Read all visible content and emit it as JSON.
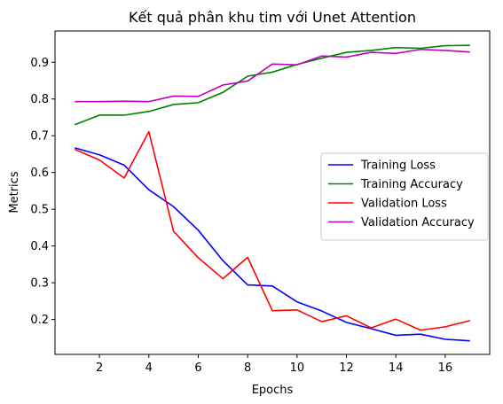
{
  "chart_data": {
    "type": "line",
    "title": "Kết quả phân khu tim với Unet Attention",
    "xlabel": "Epochs",
    "ylabel": "Metrics",
    "xlim": [
      0.2,
      17.8
    ],
    "ylim": [
      0.105,
      0.985
    ],
    "xticks": [
      2,
      4,
      6,
      8,
      10,
      12,
      14,
      16
    ],
    "yticks": [
      0.2,
      0.3,
      0.4,
      0.5,
      0.6,
      0.7,
      0.8,
      0.9
    ],
    "ytick_labels": [
      "0.2",
      "0.3",
      "0.4",
      "0.5",
      "0.6",
      "0.7",
      "0.8",
      "0.9"
    ],
    "grid": false,
    "legend_position": "center-right",
    "x": [
      1,
      2,
      3,
      4,
      5,
      6,
      7,
      8,
      9,
      10,
      11,
      12,
      13,
      14,
      15,
      16,
      17
    ],
    "series": [
      {
        "name": "Training Loss",
        "color": "#0000ff",
        "values": [
          0.667,
          0.648,
          0.62,
          0.553,
          0.507,
          0.443,
          0.36,
          0.294,
          0.291,
          0.248,
          0.223,
          0.192,
          0.175,
          0.157,
          0.16,
          0.146,
          0.142
        ]
      },
      {
        "name": "Training Accuracy",
        "color": "#008000",
        "values": [
          0.73,
          0.756,
          0.756,
          0.766,
          0.785,
          0.79,
          0.818,
          0.862,
          0.873,
          0.894,
          0.911,
          0.927,
          0.932,
          0.94,
          0.938,
          0.945,
          0.946
        ]
      },
      {
        "name": "Validation Loss",
        "color": "#ff0000",
        "values": [
          0.663,
          0.634,
          0.585,
          0.711,
          0.44,
          0.368,
          0.311,
          0.369,
          0.224,
          0.226,
          0.194,
          0.21,
          0.177,
          0.201,
          0.171,
          0.18,
          0.197
        ]
      },
      {
        "name": "Validation Accuracy",
        "color": "#bf00bf",
        "values": [
          0.793,
          0.793,
          0.794,
          0.793,
          0.808,
          0.807,
          0.838,
          0.849,
          0.895,
          0.893,
          0.917,
          0.914,
          0.927,
          0.924,
          0.935,
          0.932,
          0.928
        ]
      }
    ]
  }
}
